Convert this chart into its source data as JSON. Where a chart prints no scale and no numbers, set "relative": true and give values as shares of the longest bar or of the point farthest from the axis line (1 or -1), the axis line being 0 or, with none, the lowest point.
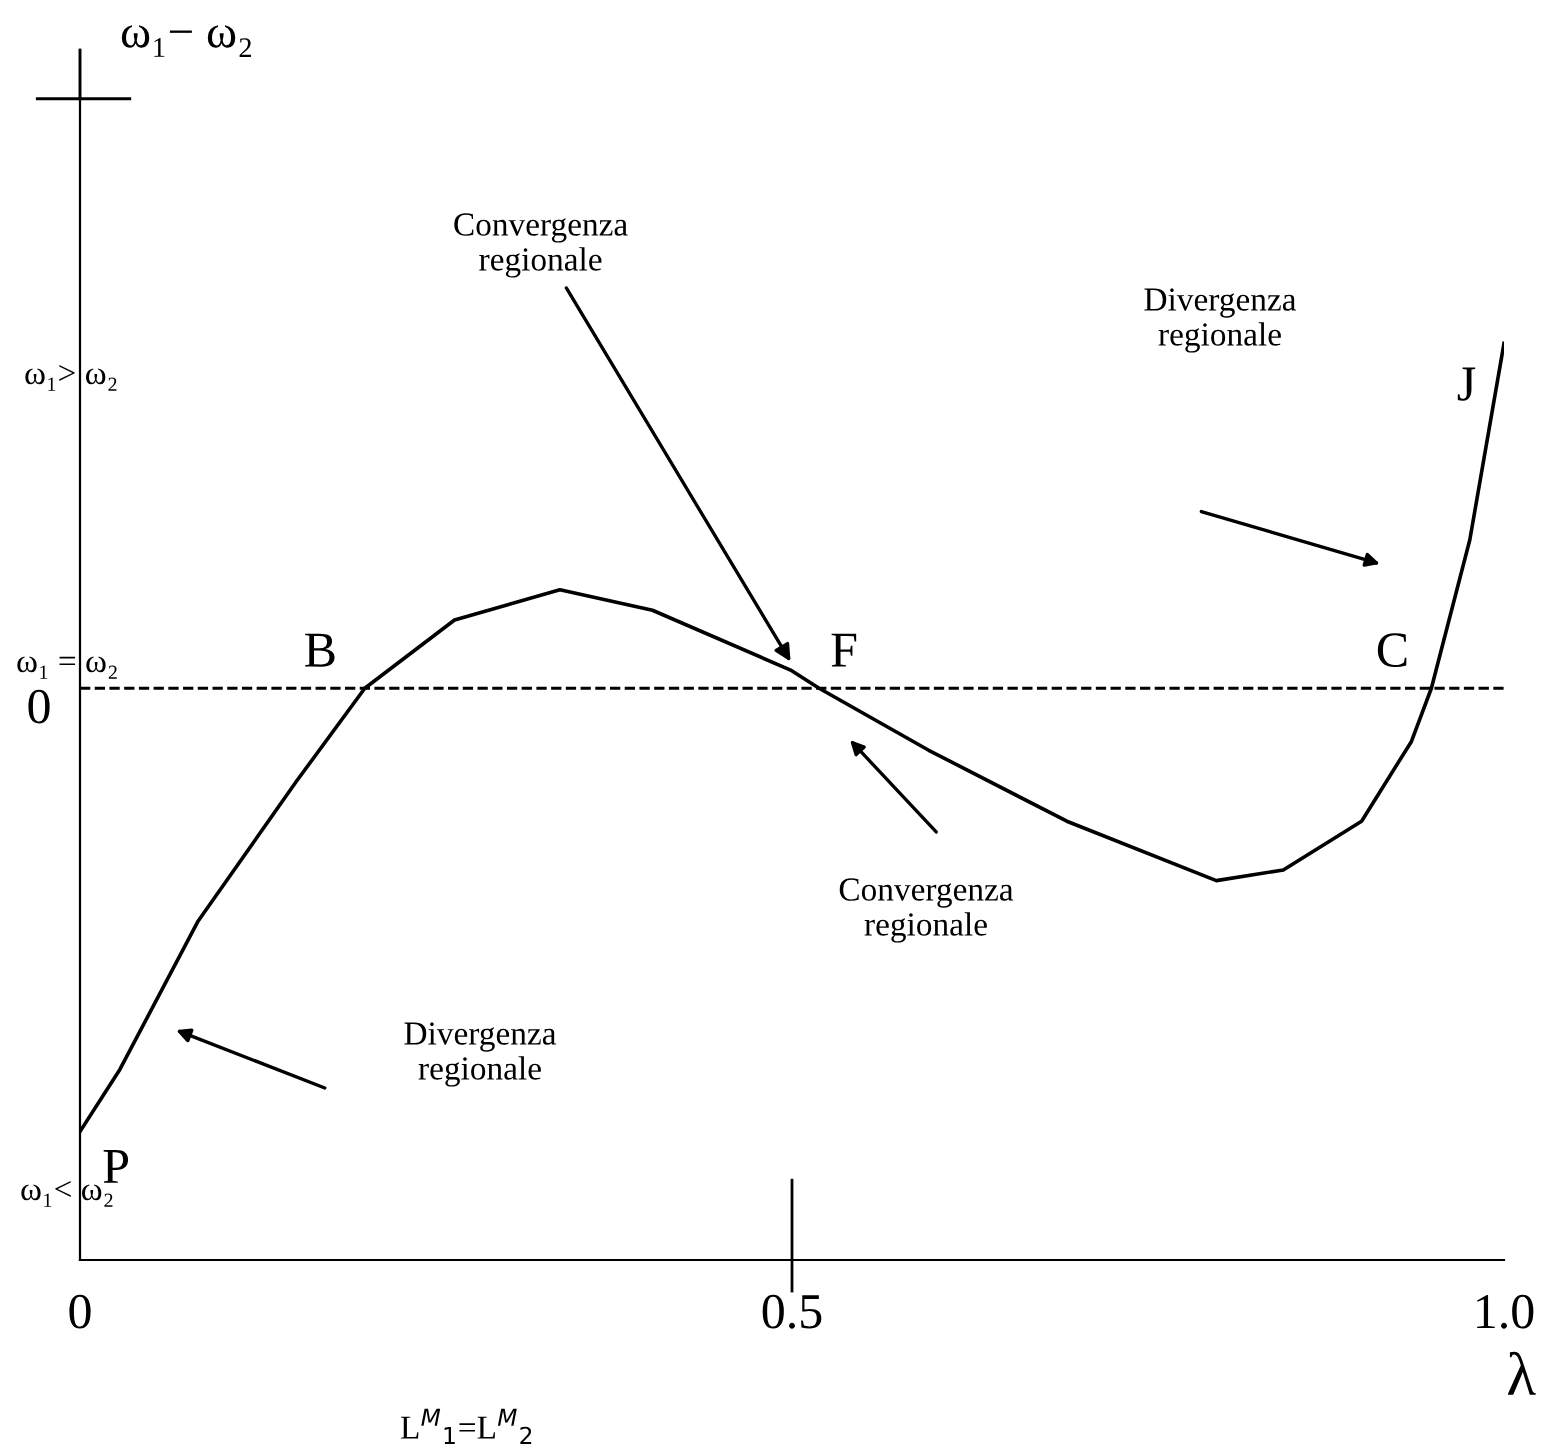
{
  "chart_data": {
    "type": "line",
    "relative": true,
    "xlabel": "λ",
    "x": [
      0,
      0.028,
      0.083,
      0.152,
      0.2,
      0.263,
      0.337,
      0.402,
      0.499,
      0.519,
      0.596,
      0.693,
      0.798,
      0.845,
      0.9,
      0.935,
      0.949,
      0.976,
      1.0
    ],
    "series": [
      {
        "color": "#000000",
        "values": [
          -1,
          -0.86,
          -0.525,
          -0.21,
          0,
          0.154,
          0.222,
          0.176,
          0.041,
          0,
          -0.14,
          -0.3,
          -0.434,
          -0.41,
          -0.3,
          -0.12,
          0,
          0.335,
          0.778
        ]
      }
    ],
    "xlim": [
      0,
      1
    ],
    "xticks": [
      0,
      0.5,
      {
        "value": 1.0,
        "label": "1.0"
      }
    ],
    "ref_lines": [
      {
        "axis": "y",
        "value": 0,
        "label": "0",
        "color": "#000000",
        "line_style": "dashed"
      }
    ],
    "annotations": [
      {
        "text": "P",
        "x": 0,
        "y": -1
      },
      {
        "text": "B",
        "x": 0.2,
        "y": 0
      },
      {
        "text": "F",
        "x": 0.519,
        "y": 0
      },
      {
        "text": "C",
        "x": 0.949,
        "y": 0
      },
      {
        "text": "J",
        "x": 1.0,
        "y": 0.778
      },
      {
        "text": "Convergenza\nregionale",
        "x": 0.499,
        "y": 0.06
      },
      "Convergenza\nregionale",
      "Divergenza\nregionale",
      "Divergenza\nregionale",
      "ω₁− ω₂",
      "ω₁> ω₂",
      "ω₁ = ω₂",
      "ω₁< ω₂",
      "L$^{M}$$_{1}$=L$^{M}$$_{2}$"
    ],
    "line_style": "solid",
    "marker": "none",
    "grid": false
  }
}
